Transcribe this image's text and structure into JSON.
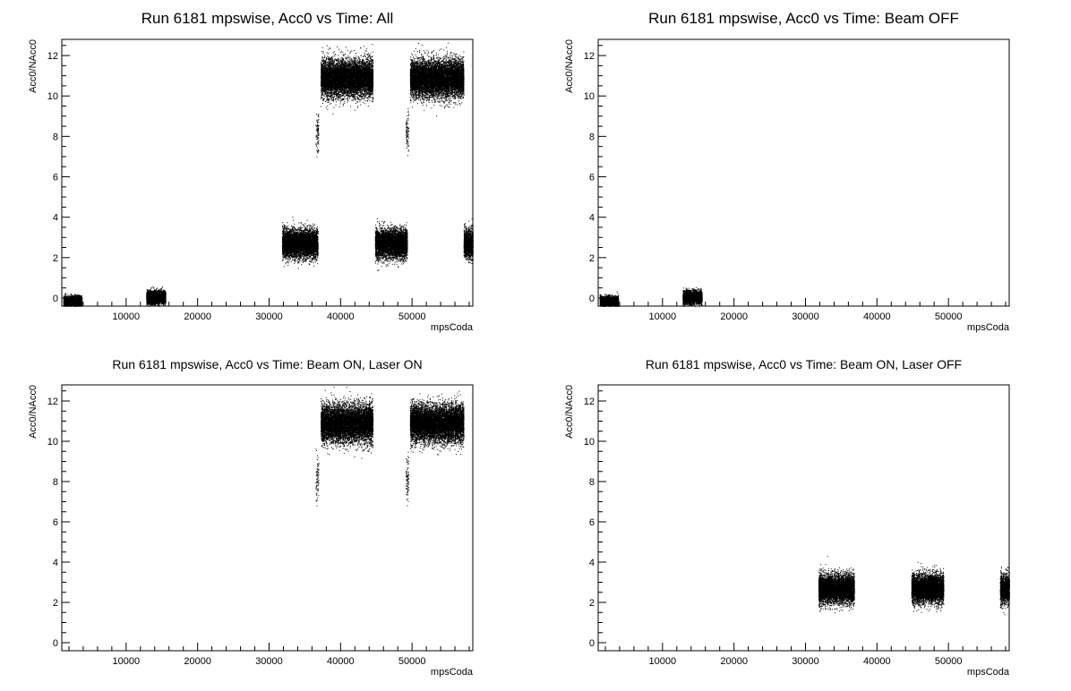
{
  "chart_data": [
    {
      "type": "scatter",
      "title": "Run 6181 mpswise, Acc0 vs Time: All",
      "xlabel": "mpsCoda",
      "ylabel": "Acc0/NAcc0",
      "xlim": [
        1000,
        58500
      ],
      "ylim": [
        -0.4,
        12.8
      ],
      "x_ticks": [
        10000,
        20000,
        30000,
        40000,
        50000
      ],
      "y_ticks": [
        0,
        2,
        4,
        6,
        8,
        10,
        12
      ],
      "grid": false,
      "clusters": [
        {
          "x_range": [
            1200,
            3800
          ],
          "y_center": -0.15,
          "y_spread": 0.12,
          "density": "dense"
        },
        {
          "x_range": [
            12800,
            15500
          ],
          "y_center": 0.05,
          "y_spread": 0.15,
          "density": "dense"
        },
        {
          "x_range": [
            31800,
            36800
          ],
          "y_center": 2.7,
          "y_spread": 0.35,
          "density": "dense"
        },
        {
          "x_range": [
            36500,
            36900
          ],
          "y_center": 8.2,
          "y_spread": 0.5,
          "density": "sparse"
        },
        {
          "x_range": [
            37200,
            44500
          ],
          "y_center": 10.9,
          "y_spread": 0.45,
          "density": "dense"
        },
        {
          "x_range": [
            44800,
            49300
          ],
          "y_center": 2.7,
          "y_spread": 0.35,
          "density": "dense"
        },
        {
          "x_range": [
            49100,
            49500
          ],
          "y_center": 8.2,
          "y_spread": 0.5,
          "density": "sparse"
        },
        {
          "x_range": [
            49700,
            57200
          ],
          "y_center": 10.9,
          "y_spread": 0.45,
          "density": "dense"
        },
        {
          "x_range": [
            57200,
            58500
          ],
          "y_center": 2.7,
          "y_spread": 0.35,
          "density": "dense"
        }
      ]
    },
    {
      "type": "scatter",
      "title": "Run 6181 mpswise, Acc0 vs Time: Beam OFF",
      "xlabel": "mpsCoda",
      "ylabel": "Acc0/NAcc0",
      "xlim": [
        1000,
        58500
      ],
      "ylim": [
        -0.4,
        12.8
      ],
      "x_ticks": [
        10000,
        20000,
        30000,
        40000,
        50000
      ],
      "y_ticks": [
        0,
        2,
        4,
        6,
        8,
        10,
        12
      ],
      "grid": false,
      "clusters": [
        {
          "x_range": [
            1200,
            3800
          ],
          "y_center": -0.15,
          "y_spread": 0.12,
          "density": "dense"
        },
        {
          "x_range": [
            12800,
            15500
          ],
          "y_center": 0.05,
          "y_spread": 0.15,
          "density": "dense"
        }
      ]
    },
    {
      "type": "scatter",
      "title": "Run 6181 mpswise, Acc0 vs Time: Beam ON, Laser ON",
      "xlabel": "mpsCoda",
      "ylabel": "Acc0/NAcc0",
      "xlim": [
        1000,
        58500
      ],
      "ylim": [
        -0.4,
        12.8
      ],
      "x_ticks": [
        10000,
        20000,
        30000,
        40000,
        50000
      ],
      "y_ticks": [
        0,
        2,
        4,
        6,
        8,
        10,
        12
      ],
      "grid": false,
      "clusters": [
        {
          "x_range": [
            36500,
            36900
          ],
          "y_center": 8.2,
          "y_spread": 0.5,
          "density": "sparse"
        },
        {
          "x_range": [
            37200,
            44500
          ],
          "y_center": 10.9,
          "y_spread": 0.45,
          "density": "dense"
        },
        {
          "x_range": [
            49100,
            49500
          ],
          "y_center": 8.2,
          "y_spread": 0.5,
          "density": "sparse"
        },
        {
          "x_range": [
            49700,
            57200
          ],
          "y_center": 10.9,
          "y_spread": 0.45,
          "density": "dense"
        }
      ]
    },
    {
      "type": "scatter",
      "title": "Run 6181 mpswise, Acc0 vs Time: Beam ON, Laser OFF",
      "xlabel": "mpsCoda",
      "ylabel": "Acc0/NAcc0",
      "xlim": [
        1000,
        58500
      ],
      "ylim": [
        -0.4,
        12.8
      ],
      "x_ticks": [
        10000,
        20000,
        30000,
        40000,
        50000
      ],
      "y_ticks": [
        0,
        2,
        4,
        6,
        8,
        10,
        12
      ],
      "grid": false,
      "clusters": [
        {
          "x_range": [
            31800,
            36800
          ],
          "y_center": 2.7,
          "y_spread": 0.35,
          "density": "dense"
        },
        {
          "x_range": [
            44800,
            49300
          ],
          "y_center": 2.7,
          "y_spread": 0.35,
          "density": "dense"
        },
        {
          "x_range": [
            57200,
            58500
          ],
          "y_center": 2.7,
          "y_spread": 0.35,
          "density": "dense"
        }
      ]
    }
  ]
}
